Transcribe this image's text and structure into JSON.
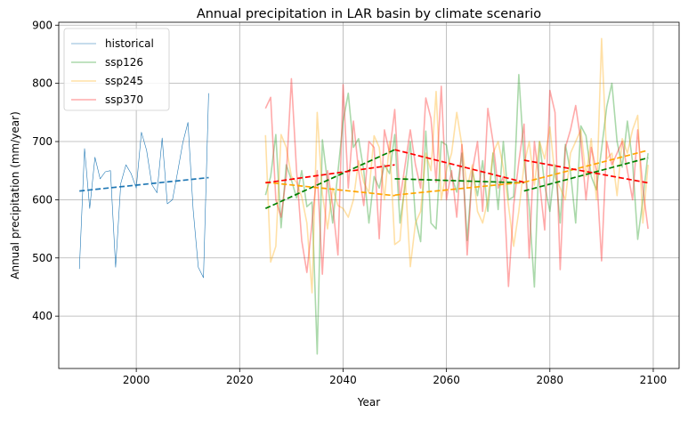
{
  "chart_data": {
    "type": "line",
    "title": "Annual precipitation in LAR basin by climate scenario",
    "xlabel": "Year",
    "ylabel": "Annual precipitation (mm/year)",
    "xlim": [
      1985,
      2105
    ],
    "ylim": [
      310,
      905
    ],
    "xticks": [
      2000,
      2020,
      2040,
      2060,
      2080,
      2100
    ],
    "yticks": [
      400,
      500,
      600,
      700,
      800,
      900
    ],
    "grid": true,
    "legend_position": "top-left",
    "colors": {
      "historical": "#1f77b4",
      "ssp126": "#2ca02c",
      "ssp245": "#ffa500",
      "ssp370": "#ff2a2a",
      "trend_ssp126": "#008000",
      "trend_ssp245": "#ffa500",
      "trend_ssp370": "#ff0000"
    },
    "series": [
      {
        "name": "historical",
        "x": [
          1989,
          1990,
          1991,
          1992,
          1993,
          1994,
          1995,
          1996,
          1997,
          1998,
          1999,
          2000,
          2001,
          2002,
          2003,
          2004,
          2005,
          2006,
          2007,
          2008,
          2009,
          2010,
          2011,
          2012,
          2013,
          2014
        ],
        "y": [
          481,
          688,
          585,
          673,
          636,
          648,
          650,
          484,
          628,
          660,
          645,
          620,
          716,
          685,
          626,
          612,
          706,
          593,
          600,
          648,
          698,
          733,
          583,
          484,
          466,
          783
        ]
      },
      {
        "name": "ssp126",
        "x": [
          2025,
          2026,
          2027,
          2028,
          2029,
          2030,
          2031,
          2032,
          2033,
          2034,
          2035,
          2036,
          2037,
          2038,
          2039,
          2040,
          2041,
          2042,
          2043,
          2044,
          2045,
          2046,
          2047,
          2048,
          2049,
          2050,
          2051,
          2052,
          2053,
          2054,
          2055,
          2056,
          2057,
          2058,
          2059,
          2060,
          2061,
          2062,
          2063,
          2064,
          2065,
          2066,
          2067,
          2068,
          2069,
          2070,
          2071,
          2072,
          2073,
          2074,
          2075,
          2076,
          2077,
          2078,
          2079,
          2080,
          2081,
          2082,
          2083,
          2084,
          2085,
          2086,
          2087,
          2088,
          2089,
          2090,
          2091,
          2092,
          2093,
          2094,
          2095,
          2096,
          2097,
          2098,
          2099
        ],
        "y": [
          608,
          640,
          712,
          552,
          660,
          634,
          603,
          650,
          588,
          596,
          335,
          703,
          630,
          560,
          648,
          735,
          783,
          690,
          705,
          650,
          560,
          640,
          620,
          660,
          645,
          712,
          560,
          625,
          700,
          567,
          528,
          718,
          560,
          550,
          700,
          694,
          640,
          613,
          680,
          530,
          650,
          607,
          667,
          580,
          680,
          583,
          700,
          600,
          605,
          815,
          670,
          587,
          450,
          700,
          625,
          580,
          660,
          560,
          695,
          648,
          560,
          727,
          710,
          640,
          617,
          687,
          760,
          800,
          700,
          656,
          735,
          665,
          532,
          600,
          680
        ]
      },
      {
        "name": "ssp245",
        "x": [
          2025,
          2026,
          2027,
          2028,
          2029,
          2030,
          2031,
          2032,
          2033,
          2034,
          2035,
          2036,
          2037,
          2038,
          2039,
          2040,
          2041,
          2042,
          2043,
          2044,
          2045,
          2046,
          2047,
          2048,
          2049,
          2050,
          2051,
          2052,
          2053,
          2054,
          2055,
          2056,
          2057,
          2058,
          2059,
          2060,
          2061,
          2062,
          2063,
          2064,
          2065,
          2066,
          2067,
          2068,
          2069,
          2070,
          2071,
          2072,
          2073,
          2074,
          2075,
          2076,
          2077,
          2078,
          2079,
          2080,
          2081,
          2082,
          2083,
          2084,
          2085,
          2086,
          2087,
          2088,
          2089,
          2090,
          2091,
          2092,
          2093,
          2094,
          2095,
          2096,
          2097,
          2098,
          2099
        ],
        "y": [
          711,
          493,
          520,
          712,
          690,
          640,
          630,
          605,
          560,
          440,
          750,
          610,
          550,
          620,
          590,
          585,
          570,
          600,
          667,
          630,
          612,
          710,
          690,
          600,
          700,
          523,
          530,
          640,
          485,
          560,
          580,
          680,
          650,
          786,
          600,
          650,
          680,
          750,
          693,
          620,
          660,
          580,
          560,
          600,
          680,
          700,
          655,
          590,
          520,
          580,
          660,
          700,
          625,
          700,
          670,
          725,
          640,
          620,
          600,
          680,
          700,
          720,
          640,
          705,
          600,
          877,
          670,
          680,
          607,
          705,
          680,
          720,
          745,
          560,
          660
        ]
      },
      {
        "name": "ssp370",
        "x": [
          2025,
          2026,
          2027,
          2028,
          2029,
          2030,
          2031,
          2032,
          2033,
          2034,
          2035,
          2036,
          2037,
          2038,
          2039,
          2040,
          2041,
          2042,
          2043,
          2044,
          2045,
          2046,
          2047,
          2048,
          2049,
          2050,
          2051,
          2052,
          2053,
          2054,
          2055,
          2056,
          2057,
          2058,
          2059,
          2060,
          2061,
          2062,
          2063,
          2064,
          2065,
          2066,
          2067,
          2068,
          2069,
          2070,
          2071,
          2072,
          2073,
          2074,
          2075,
          2076,
          2077,
          2078,
          2079,
          2080,
          2081,
          2082,
          2083,
          2084,
          2085,
          2086,
          2087,
          2088,
          2089,
          2090,
          2091,
          2092,
          2093,
          2094,
          2095,
          2096,
          2097,
          2098,
          2099
        ],
        "y": [
          757,
          776,
          600,
          570,
          640,
          808,
          650,
          530,
          475,
          560,
          650,
          472,
          650,
          590,
          505,
          798,
          620,
          735,
          650,
          590,
          700,
          690,
          533,
          720,
          680,
          755,
          600,
          660,
          720,
          660,
          620,
          775,
          740,
          630,
          795,
          600,
          650,
          570,
          695,
          505,
          650,
          700,
          580,
          757,
          700,
          620,
          640,
          451,
          590,
          665,
          730,
          500,
          700,
          630,
          548,
          788,
          750,
          480,
          690,
          720,
          762,
          700,
          600,
          690,
          650,
          495,
          700,
          660,
          680,
          700,
          650,
          600,
          720,
          620,
          550
        ]
      }
    ],
    "trend_lines": [
      {
        "scenario": "historical",
        "x": [
          1989,
          2014
        ],
        "y": [
          615,
          638
        ]
      },
      {
        "scenario": "ssp126",
        "x": [
          2025,
          2050
        ],
        "y": [
          585,
          686
        ]
      },
      {
        "scenario": "ssp126",
        "x": [
          2050,
          2075
        ],
        "y": [
          636,
          629
        ]
      },
      {
        "scenario": "ssp126",
        "x": [
          2075,
          2099
        ],
        "y": [
          615,
          672
        ]
      },
      {
        "scenario": "ssp245",
        "x": [
          2025,
          2050
        ],
        "y": [
          630,
          607
        ]
      },
      {
        "scenario": "ssp245",
        "x": [
          2050,
          2075
        ],
        "y": [
          608,
          630
        ]
      },
      {
        "scenario": "ssp245",
        "x": [
          2075,
          2099
        ],
        "y": [
          630,
          685
        ]
      },
      {
        "scenario": "ssp370",
        "x": [
          2025,
          2050
        ],
        "y": [
          629,
          660
        ]
      },
      {
        "scenario": "ssp370",
        "x": [
          2050,
          2075
        ],
        "y": [
          686,
          630
        ]
      },
      {
        "scenario": "ssp370",
        "x": [
          2075,
          2099
        ],
        "y": [
          668,
          629
        ]
      }
    ]
  }
}
